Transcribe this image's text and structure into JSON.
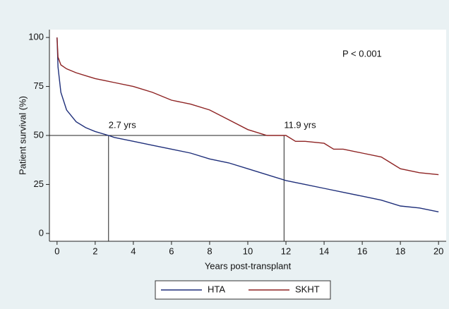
{
  "chart_data": {
    "type": "line",
    "xlabel": "Years post-transplant",
    "ylabel": "Patient survival (%)",
    "annotation": "P < 0.001",
    "xlim": [
      -0.4,
      20.4
    ],
    "ylim": [
      -4,
      104
    ],
    "xticks": [
      0,
      2,
      4,
      6,
      8,
      10,
      12,
      14,
      16,
      18,
      20
    ],
    "yticks": [
      0,
      25,
      50,
      75,
      100
    ],
    "reference_y": 50,
    "reference_lines": [
      {
        "x": 2.7,
        "label": "2.7 yrs"
      },
      {
        "x": 11.9,
        "label": "11.9 yrs"
      }
    ],
    "legend": "bottom",
    "series": [
      {
        "name": "HTA",
        "color": "#1f2f7a",
        "x": [
          0,
          0.05,
          0.2,
          0.5,
          1,
          1.5,
          2,
          2.7,
          3,
          4,
          5,
          6,
          7,
          8,
          9,
          10,
          11,
          12,
          13,
          14,
          15,
          16,
          17,
          18,
          19,
          20
        ],
        "values": [
          100,
          85,
          72,
          63,
          57,
          54,
          52,
          50,
          49,
          47,
          45,
          43,
          41,
          38,
          36,
          33,
          30,
          27,
          25,
          23,
          21,
          19,
          17,
          14,
          13,
          11
        ]
      },
      {
        "name": "SKHT",
        "color": "#8e2323",
        "x": [
          0,
          0.05,
          0.2,
          0.5,
          1,
          2,
          2.5,
          3,
          4,
          5,
          6,
          7,
          8,
          9,
          10,
          11,
          12,
          12.5,
          13,
          14,
          14.5,
          15,
          16,
          17,
          17.5,
          18,
          19,
          20
        ],
        "values": [
          100,
          90,
          86,
          84,
          82,
          79,
          78,
          77,
          75,
          72,
          68,
          66,
          63,
          58,
          53,
          50,
          50,
          47,
          47,
          46,
          43,
          43,
          41,
          39,
          36,
          33,
          31,
          30
        ]
      }
    ]
  }
}
